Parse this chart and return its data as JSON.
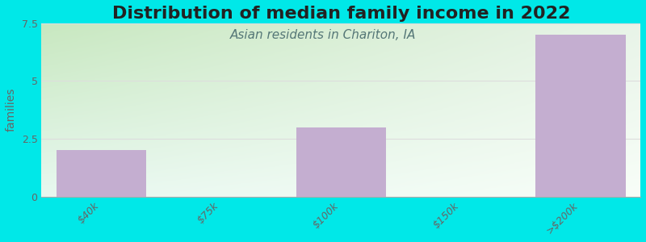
{
  "title": "Distribution of median family income in 2022",
  "subtitle": "Asian residents in Chariton, IA",
  "categories": [
    "$40k",
    "$75k",
    "$100k",
    "$150k",
    ">$200k"
  ],
  "values": [
    2.0,
    0,
    3.0,
    0,
    7.0
  ],
  "bar_color": "#c4aed0",
  "background_color": "#00e8e8",
  "gradient_top_left": "#c8e8c0",
  "gradient_top_right": "#e8f4e8",
  "gradient_bottom": "#f0faf0",
  "ylabel": "families",
  "ylim": [
    0,
    7.5
  ],
  "yticks": [
    0,
    2.5,
    5,
    7.5
  ],
  "title_fontsize": 16,
  "subtitle_fontsize": 11,
  "tick_fontsize": 9,
  "ylabel_fontsize": 10,
  "bar_width": 0.75,
  "title_color": "#222222",
  "subtitle_color": "#557777",
  "tick_color": "#666666",
  "grid_color": "#dddddd"
}
